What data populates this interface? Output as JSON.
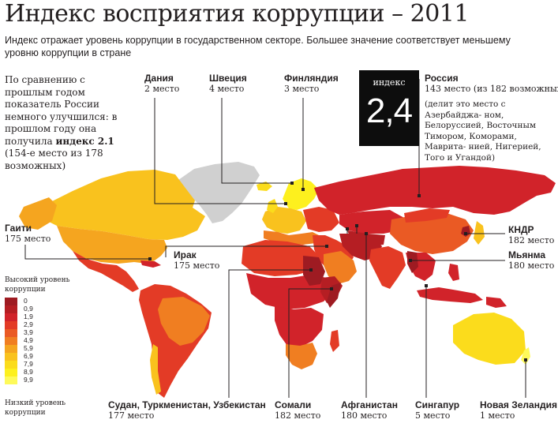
{
  "title": "Индекс восприятия коррупции – 2011",
  "subtitle": "Индекс отражает уровень коррупции в государственном секторе. Большее значение соответствует меньшему уровню коррупции в стране",
  "russia_note": {
    "text": "По сравнению с прошлым годом показатель России немного улучшился: в прошлом году она получила ",
    "bold": "индекс 2.1",
    "tail": " (154-е место из 178 возможных)"
  },
  "index_box": {
    "caption": "индекс",
    "value": "2,4"
  },
  "countries": {
    "russia": {
      "name": "Россия",
      "place": "143 место (из 182 возможных)",
      "detail": "(делит это место с Азербайджа- ном, Белоруссией, Восточным Тимором, Коморами, Маврита- нией, Нигерией, Того и Угандой)"
    },
    "denmark": {
      "name": "Дания",
      "place": "2 место"
    },
    "sweden": {
      "name": "Швеция",
      "place": "4 место"
    },
    "finland": {
      "name": "Финляндия",
      "place": "3 место"
    },
    "haiti": {
      "name": "Гаити",
      "place": "175 место"
    },
    "iraq": {
      "name": "Ирак",
      "place": "175 место"
    },
    "dprk": {
      "name": "КНДР",
      "place": "182 место"
    },
    "myanmar": {
      "name": "Мьянма",
      "place": "180 место"
    },
    "sudan": {
      "name": "Судан, Туркменистан, Узбекистан",
      "place": "177 место"
    },
    "somalia": {
      "name": "Сомали",
      "place": "182 место"
    },
    "afghanistan": {
      "name": "Афганистан",
      "place": "180 место"
    },
    "singapore": {
      "name": "Сингапур",
      "place": "5 место"
    },
    "newzealand": {
      "name": "Новая Зеландия",
      "place": "1 место"
    }
  },
  "legend": {
    "top_label": "Высокий уровень коррупции",
    "bottom_label": "Низкий уровень коррупции",
    "steps": [
      {
        "value": "0",
        "color": "#9e1b22"
      },
      {
        "value": "0,9",
        "color": "#b51e23"
      },
      {
        "value": "1,9",
        "color": "#d1232a"
      },
      {
        "value": "2,9",
        "color": "#e33b26"
      },
      {
        "value": "3,9",
        "color": "#ea5a24"
      },
      {
        "value": "4,9",
        "color": "#f07e21"
      },
      {
        "value": "5,9",
        "color": "#f5a51f"
      },
      {
        "value": "6,9",
        "color": "#f9c21e"
      },
      {
        "value": "7,9",
        "color": "#fbdc1c"
      },
      {
        "value": "8,9",
        "color": "#fdf01e"
      },
      {
        "value": "9,9",
        "color": "#fefa5a"
      }
    ]
  },
  "colors": {
    "no_data": "#d0d0d0",
    "ocean": "#ffffff",
    "border": "#ffffff",
    "leader_line": "#231f20",
    "index_box_bg": "#0d0d0d"
  }
}
